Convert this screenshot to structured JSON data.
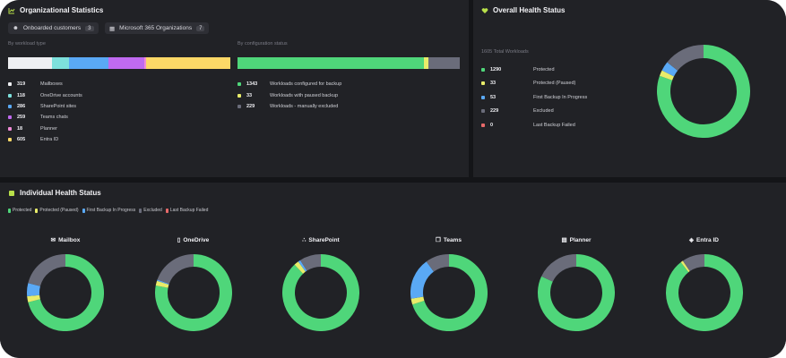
{
  "colors": {
    "protected": "#4fd67a",
    "paused": "#e8ec6a",
    "in_progress": "#5aa9f5",
    "excluded": "#6a6c7a",
    "failed": "#e86a6a"
  },
  "org": {
    "title": "Organizational Statistics",
    "icon": "chart-icon",
    "chips": [
      {
        "label": "Onboarded customers",
        "count": "3",
        "icon": "user-icon"
      },
      {
        "label": "Microsoft 365 Organizations",
        "count": "7",
        "icon": "organization-icon"
      }
    ],
    "workload_label": "By workload type",
    "workloads": [
      {
        "value": 319,
        "label": "Mailboxes",
        "color": "#eeeff2"
      },
      {
        "value": 118,
        "label": "OneDrive accounts",
        "color": "#7de0dc"
      },
      {
        "value": 286,
        "label": "SharePoint sites",
        "color": "#5aa9f5"
      },
      {
        "value": 259,
        "label": "Teams chats",
        "color": "#c06af0"
      },
      {
        "value": 18,
        "label": "Planner",
        "color": "#f08ad6"
      },
      {
        "value": 605,
        "label": "Entra ID",
        "color": "#fcd867"
      }
    ],
    "config_label": "By configuration status",
    "config": [
      {
        "value": 1343,
        "label": "Workloads configured for backup",
        "color": "#4fd67a"
      },
      {
        "value": 33,
        "label": "Workloads with paused backup",
        "color": "#e8ec6a"
      },
      {
        "value": 229,
        "label": "Workloads - manually excluded",
        "color": "#6a6c7a"
      }
    ]
  },
  "overall": {
    "title": "Overall Health Status",
    "icon": "heart-pulse-icon",
    "total": "1605 Total Workloads",
    "items": [
      {
        "value": 1290,
        "label": "Protected",
        "color": "#4fd67a"
      },
      {
        "value": 33,
        "label": "Protected (Paused)",
        "color": "#e8ec6a"
      },
      {
        "value": 53,
        "label": "First Backup In Progress",
        "color": "#5aa9f5"
      },
      {
        "value": 229,
        "label": "Excluded",
        "color": "#6a6c7a"
      },
      {
        "value": 0,
        "label": "Last Backup Failed",
        "color": "#e86a6a"
      }
    ]
  },
  "individual": {
    "title": "Individual Health Status",
    "icon": "shield-icon",
    "legend": [
      "Protected",
      "Protected (Paused)",
      "First Backup In Progress",
      "Excluded",
      "Last Backup Failed"
    ],
    "chart_data": {
      "type": "pie",
      "categories": [
        "Protected",
        "Protected (Paused)",
        "First Backup In Progress",
        "Excluded",
        "Last Backup Failed"
      ],
      "series": [
        {
          "name": "Mailbox",
          "icon": "mail-icon",
          "values": [
            71,
            2.5,
            5.5,
            21,
            0
          ]
        },
        {
          "name": "OneDrive",
          "icon": "database-icon",
          "values": [
            78,
            2,
            0.5,
            19.5,
            0
          ]
        },
        {
          "name": "SharePoint",
          "icon": "sitemap-icon",
          "values": [
            88,
            2,
            1,
            9,
            0
          ]
        },
        {
          "name": "Teams",
          "icon": "chat-icon",
          "values": [
            70,
            2.5,
            17.5,
            10,
            0
          ]
        },
        {
          "name": "Planner",
          "icon": "clipboard-icon",
          "values": [
            82,
            0,
            0,
            18,
            0
          ]
        },
        {
          "name": "Entra ID",
          "icon": "diamond-icon",
          "values": [
            89.5,
            1,
            0,
            9.5,
            0
          ]
        }
      ]
    }
  }
}
